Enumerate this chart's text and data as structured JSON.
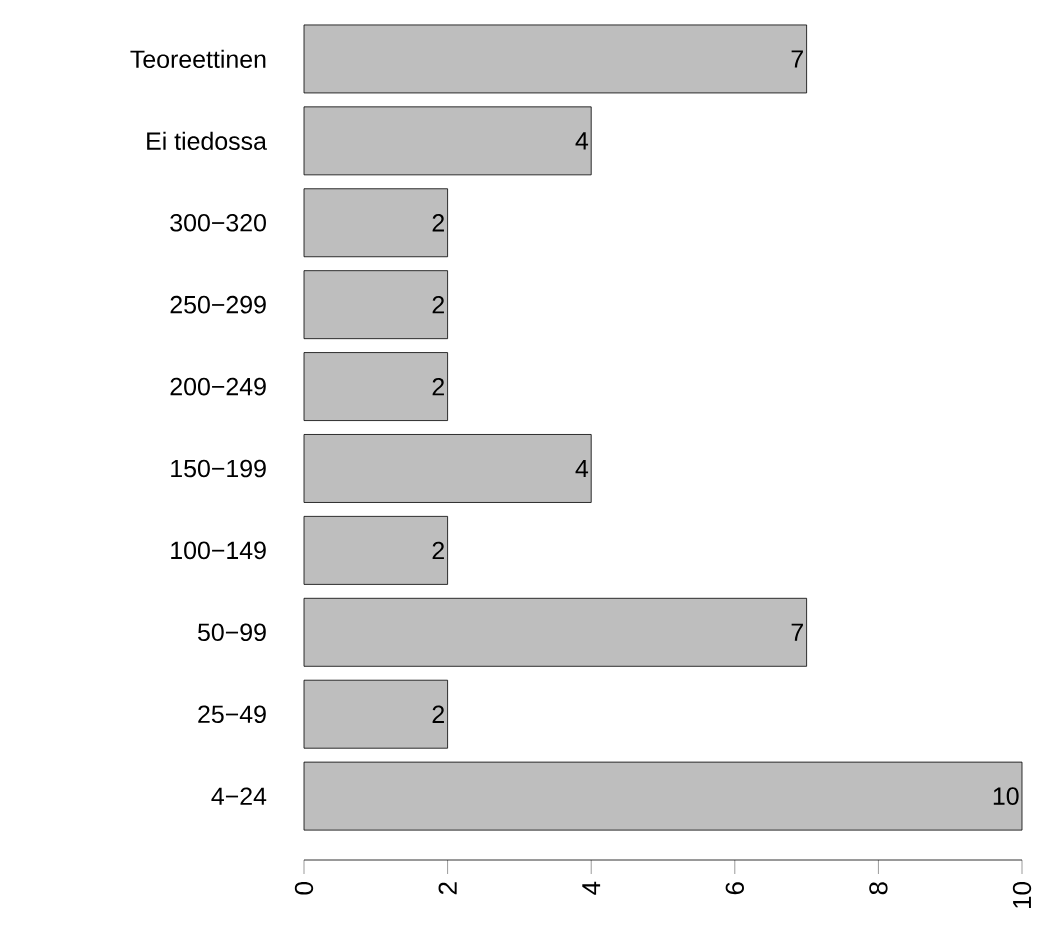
{
  "chart_data": {
    "type": "bar",
    "orientation": "horizontal",
    "categories": [
      "Teoreettinen",
      "Ei tiedossa",
      "300−320",
      "250−299",
      "200−249",
      "150−199",
      "100−149",
      "50−99",
      "25−49",
      "4−24"
    ],
    "values": [
      7,
      4,
      2,
      2,
      2,
      4,
      2,
      7,
      2,
      10
    ],
    "color": "#bebebe",
    "data_labels": true,
    "xlim": [
      0,
      10
    ],
    "xticks": [
      0,
      2,
      4,
      6,
      8,
      10
    ]
  }
}
